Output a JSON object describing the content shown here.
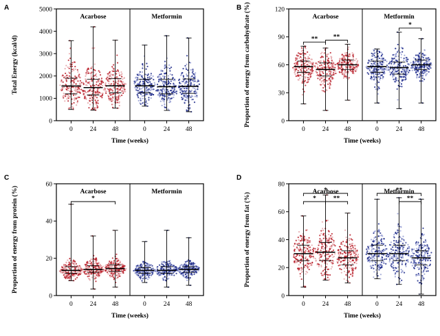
{
  "chart_data": [
    {
      "type": "scatter",
      "panel": "A",
      "ylabel": "Total Energy (kcal/d)",
      "xlabel": "Time (weeks)",
      "ylim": [
        0,
        5000
      ],
      "yticks": [
        0,
        1000,
        2000,
        3000,
        4000,
        5000
      ],
      "groups": [
        {
          "name": "Acarbose",
          "color": "#b8202a",
          "light": "#e6a7ab",
          "timepoints": [
            {
              "x": "0",
              "median": 1550,
              "q1": 1200,
              "q3": 1900,
              "min": 500,
              "max": 3580
            },
            {
              "x": "24",
              "median": 1480,
              "q1": 1150,
              "q3": 1850,
              "min": 470,
              "max": 4200
            },
            {
              "x": "48",
              "median": 1560,
              "q1": 1250,
              "q3": 1880,
              "min": 560,
              "max": 3600
            }
          ]
        },
        {
          "name": "Metformin",
          "color": "#1d2a8a",
          "light": "#9aa2d4",
          "timepoints": [
            {
              "x": "0",
              "median": 1560,
              "q1": 1250,
              "q3": 1850,
              "min": 650,
              "max": 3380
            },
            {
              "x": "24",
              "median": 1520,
              "q1": 1200,
              "q3": 1850,
              "min": 460,
              "max": 3800
            },
            {
              "x": "48",
              "median": 1540,
              "q1": 1220,
              "q3": 1870,
              "min": 400,
              "max": 3700
            }
          ]
        }
      ],
      "significance": []
    },
    {
      "type": "scatter",
      "panel": "B",
      "ylabel": "Proportion of energy from carbohydrate (%)",
      "xlabel": "Time (weeks)",
      "ylim": [
        0,
        120
      ],
      "yticks": [
        0,
        30,
        60,
        90,
        120
      ],
      "groups": [
        {
          "name": "Acarbose",
          "color": "#b8202a",
          "light": "#e6a7ab",
          "timepoints": [
            {
              "x": "0",
              "median": 58,
              "q1": 52,
              "q3": 64,
              "min": 18,
              "max": 80
            },
            {
              "x": "24",
              "median": 55,
              "q1": 48,
              "q3": 62,
              "min": 11,
              "max": 78
            },
            {
              "x": "48",
              "median": 60,
              "q1": 55,
              "q3": 65,
              "min": 22,
              "max": 82
            }
          ]
        },
        {
          "name": "Metformin",
          "color": "#1d2a8a",
          "light": "#9aa2d4",
          "timepoints": [
            {
              "x": "0",
              "median": 58,
              "q1": 52,
              "q3": 64,
              "min": 19,
              "max": 77
            },
            {
              "x": "24",
              "median": 57,
              "q1": 50,
              "q3": 63,
              "min": 13,
              "max": 95
            },
            {
              "x": "48",
              "median": 60,
              "q1": 55,
              "q3": 65,
              "min": 19,
              "max": 88
            }
          ]
        }
      ],
      "significance": [
        {
          "group": 0,
          "from": 0,
          "to": 1,
          "label": "**",
          "level": 1
        },
        {
          "group": 0,
          "from": 1,
          "to": 2,
          "label": "**",
          "level": 1
        },
        {
          "group": 1,
          "from": 1,
          "to": 2,
          "label": "*",
          "level": 1
        }
      ]
    },
    {
      "type": "scatter",
      "panel": "C",
      "ylabel": "Proportion of energy from protein (%)",
      "xlabel": "Time (weeks)",
      "ylim": [
        0,
        60
      ],
      "yticks": [
        0,
        20,
        40,
        60
      ],
      "groups": [
        {
          "name": "Acarbose",
          "color": "#b8202a",
          "light": "#e6a7ab",
          "timepoints": [
            {
              "x": "0",
              "median": 13.5,
              "q1": 12,
              "q3": 15.5,
              "min": 8,
              "max": 49
            },
            {
              "x": "24",
              "median": 14,
              "q1": 12.5,
              "q3": 16,
              "min": 3.5,
              "max": 32
            },
            {
              "x": "48",
              "median": 14.5,
              "q1": 13,
              "q3": 16.5,
              "min": 4.5,
              "max": 35
            }
          ]
        },
        {
          "name": "Metformin",
          "color": "#1d2a8a",
          "light": "#9aa2d4",
          "timepoints": [
            {
              "x": "0",
              "median": 13.5,
              "q1": 12,
              "q3": 15,
              "min": 7,
              "max": 29
            },
            {
              "x": "24",
              "median": 13.5,
              "q1": 12,
              "q3": 15.5,
              "min": 4.5,
              "max": 35
            },
            {
              "x": "48",
              "median": 14,
              "q1": 12.5,
              "q3": 15.5,
              "min": 5.5,
              "max": 31
            }
          ]
        }
      ],
      "significance": [
        {
          "group": 0,
          "from": 0,
          "to": 2,
          "label": "*",
          "level": 1
        }
      ]
    },
    {
      "type": "scatter",
      "panel": "D",
      "ylabel": "Proportion of energy from fat (%)",
      "xlabel": "Time (weeks)",
      "ylim": [
        0,
        80
      ],
      "yticks": [
        0,
        20,
        40,
        60,
        80
      ],
      "groups": [
        {
          "name": "Acarbose",
          "color": "#b8202a",
          "light": "#e6a7ab",
          "timepoints": [
            {
              "x": "0",
              "median": 30,
              "q1": 25,
              "q3": 36,
              "min": 6,
              "max": 57
            },
            {
              "x": "24",
              "median": 31,
              "q1": 25,
              "q3": 38,
              "min": 11,
              "max": 72
            },
            {
              "x": "48",
              "median": 27,
              "q1": 22,
              "q3": 32,
              "min": 9,
              "max": 59
            }
          ]
        },
        {
          "name": "Metformin",
          "color": "#1d2a8a",
          "light": "#9aa2d4",
          "timepoints": [
            {
              "x": "0",
              "median": 30,
              "q1": 25,
              "q3": 36,
              "min": 12,
              "max": 69
            },
            {
              "x": "24",
              "median": 30,
              "q1": 25,
              "q3": 36,
              "min": 8,
              "max": 70
            },
            {
              "x": "48",
              "median": 27,
              "q1": 22,
              "q3": 32,
              "min": 1,
              "max": 69
            }
          ]
        }
      ],
      "significance": [
        {
          "group": 0,
          "from": 0,
          "to": 1,
          "label": "*",
          "level": 1
        },
        {
          "group": 0,
          "from": 1,
          "to": 2,
          "label": "**",
          "level": 1
        },
        {
          "group": 0,
          "from": 0,
          "to": 2,
          "label": "*",
          "level": 2
        },
        {
          "group": 1,
          "from": 1,
          "to": 2,
          "label": "**",
          "level": 1
        },
        {
          "group": 1,
          "from": 0,
          "to": 2,
          "label": "**",
          "level": 2
        }
      ]
    }
  ]
}
